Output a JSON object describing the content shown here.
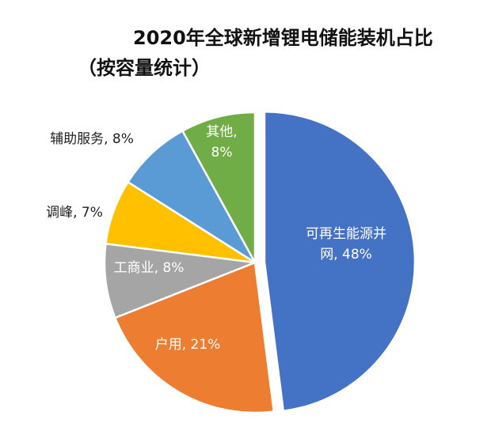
{
  "chart_data": {
    "type": "pie",
    "title_lines": [
      "2020年全球新增锂电储能装机占比",
      "（按容量统计）"
    ],
    "slices": [
      {
        "name": "可再生能源并网",
        "value": 48,
        "label_lines": [
          "可再生能源并",
          "网, 48%"
        ],
        "color": "#4472C4",
        "label_position": "inside",
        "exploded": true
      },
      {
        "name": "户用",
        "value": 21,
        "label_lines": [
          "户用, 21%"
        ],
        "color": "#ED7D31",
        "label_position": "inside",
        "exploded": false
      },
      {
        "name": "工商业",
        "value": 8,
        "label_lines": [
          "工商业, 8%"
        ],
        "color": "#A5A5A5",
        "label_position": "inside",
        "exploded": false
      },
      {
        "name": "调峰",
        "value": 7,
        "label_lines": [
          "调峰, 7%"
        ],
        "color": "#FFC000",
        "label_position": "outside",
        "exploded": false
      },
      {
        "name": "辅助服务",
        "value": 8,
        "label_lines": [
          "辅助服务, 8%"
        ],
        "color": "#5B9BD5",
        "label_position": "outside",
        "exploded": false
      },
      {
        "name": "其他",
        "value": 8,
        "label_lines": [
          "其他,",
          "8%"
        ],
        "color": "#70AD47",
        "label_position": "inside",
        "exploded": false
      }
    ],
    "start_angle": "12 o'clock",
    "direction": "clockwise",
    "legend": "none"
  }
}
